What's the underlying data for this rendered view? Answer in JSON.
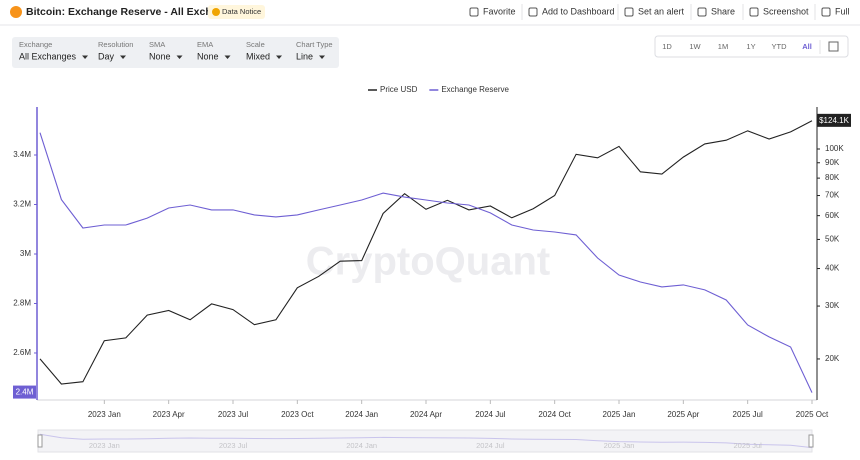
{
  "header": {
    "title": "Bitcoin: Exchange Reserve - All Exchanges",
    "badge": "Data Notice",
    "actions": [
      "Favorite",
      "Add to Dashboard",
      "Set an alert",
      "Share",
      "Screenshot",
      "Full"
    ]
  },
  "controls": [
    {
      "label": "Exchange",
      "value": "All Exchanges"
    },
    {
      "label": "Resolution",
      "value": "Day"
    },
    {
      "label": "SMA",
      "value": "None"
    },
    {
      "label": "EMA",
      "value": "None"
    },
    {
      "label": "Scale",
      "value": "Mixed"
    },
    {
      "label": "Chart Type",
      "value": "Line"
    }
  ],
  "range_buttons": [
    "1D",
    "1W",
    "1M",
    "1Y",
    "YTD",
    "All"
  ],
  "watermark": "CryptoQuant",
  "navigator": {
    "labels": [
      "2023 Jan",
      "2023 Jul",
      "2024 Jan",
      "2024 Jul",
      "2025 Jan",
      "2025 Jul"
    ]
  },
  "chart_data": {
    "type": "line",
    "x": [
      "2022 Oct",
      "2022 Nov",
      "2022 Dec",
      "2023 Jan",
      "2023 Feb",
      "2023 Mar",
      "2023 Apr",
      "2023 May",
      "2023 Jun",
      "2023 Jul",
      "2023 Aug",
      "2023 Sep",
      "2023 Oct",
      "2023 Nov",
      "2023 Dec",
      "2024 Jan",
      "2024 Feb",
      "2024 Mar",
      "2024 Apr",
      "2024 May",
      "2024 Jun",
      "2024 Jul",
      "2024 Aug",
      "2024 Sep",
      "2024 Oct",
      "2024 Nov",
      "2024 Dec",
      "2025 Jan",
      "2025 Feb",
      "2025 Mar",
      "2025 Apr",
      "2025 May",
      "2025 Jun",
      "2025 Jul",
      "2025 Aug",
      "2025 Sep",
      "2025 Oct"
    ],
    "xticks": [
      "2023 Jan",
      "2023 Apr",
      "2023 Jul",
      "2023 Oct",
      "2024 Jan",
      "2024 Apr",
      "2024 Jul",
      "2024 Oct",
      "2025 Jan",
      "2025 Apr",
      "2025 Jul",
      "2025 Oct"
    ],
    "series": [
      {
        "name": "Price USD",
        "color": "#222222",
        "axis": "y2",
        "values": [
          20000,
          16500,
          16800,
          23000,
          23500,
          28000,
          29000,
          27000,
          30500,
          29200,
          26000,
          27000,
          34500,
          37700,
          42300,
          42500,
          61000,
          71000,
          63000,
          67500,
          62700,
          64600,
          59000,
          63300,
          70000,
          96000,
          93500,
          102000,
          84000,
          82500,
          94000,
          104000,
          107000,
          115000,
          108000,
          114000,
          124100
        ]
      },
      {
        "name": "Exchange Reserve",
        "color": "#6e5fd3",
        "values": [
          3490000,
          3220000,
          3105000,
          3117000,
          3117000,
          3145000,
          3186000,
          3198000,
          3178000,
          3178000,
          3158000,
          3150000,
          3158000,
          3178000,
          3198000,
          3218000,
          3246000,
          3230000,
          3218000,
          3206000,
          3198000,
          3166000,
          3117000,
          3097000,
          3089000,
          3077000,
          2984000,
          2915000,
          2887000,
          2867000,
          2875000,
          2855000,
          2814000,
          2713000,
          2665000,
          2624000,
          2440000
        ]
      }
    ],
    "ylim": [
      2410000,
      3594000
    ],
    "yticks": [
      {
        "value": 2600000,
        "label": "2.6M"
      },
      {
        "value": 2800000,
        "label": "2.8M"
      },
      {
        "value": 3000000,
        "label": "3M"
      },
      {
        "value": 3200000,
        "label": "3.2M"
      },
      {
        "value": 3400000,
        "label": "3.4M"
      }
    ],
    "y2lim": [
      14600,
      138000
    ],
    "y2_log": true,
    "y2ticks": [
      {
        "value": 20000,
        "label": "20K"
      },
      {
        "value": 30000,
        "label": "30K"
      },
      {
        "value": 40000,
        "label": "40K"
      },
      {
        "value": 50000,
        "label": "50K"
      },
      {
        "value": 60000,
        "label": "60K"
      },
      {
        "value": 70000,
        "label": "70K"
      },
      {
        "value": 80000,
        "label": "80K"
      },
      {
        "value": 90000,
        "label": "90K"
      },
      {
        "value": 100000,
        "label": "100K"
      }
    ],
    "y_last_label": "2.4M",
    "y2_last_label": "$124.1K"
  }
}
